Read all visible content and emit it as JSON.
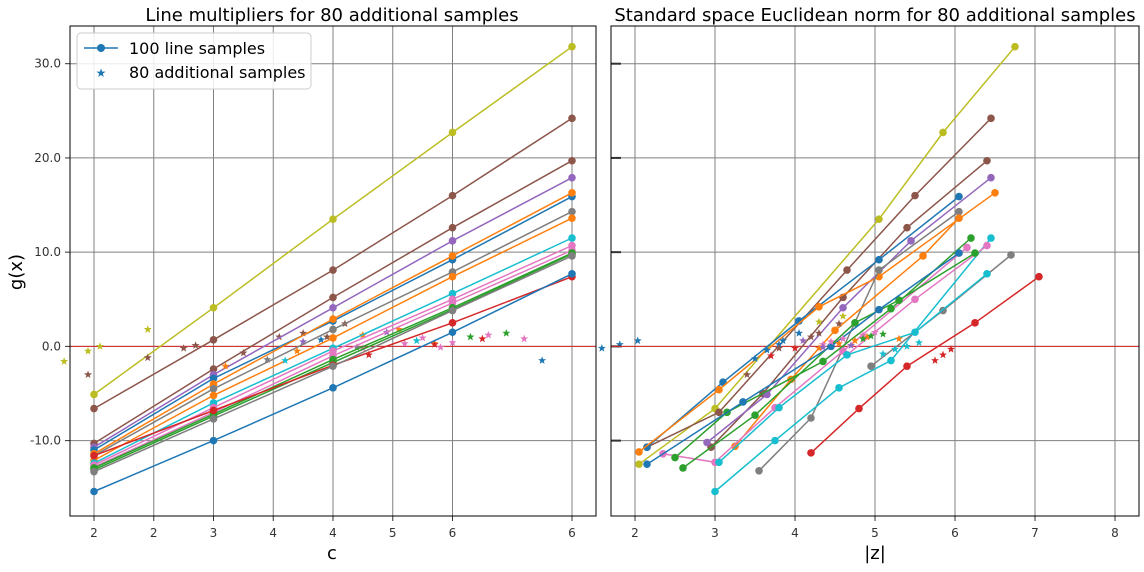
{
  "figure": {
    "shared_ylabel": "g(x)"
  },
  "legend": {
    "line_label": "100 line samples",
    "star_label": "80 additional samples"
  },
  "colors": {
    "threshold": "#d62728",
    "grid": "#808080",
    "legend_marker": "#1f77b4"
  },
  "chart_data": [
    {
      "type": "line",
      "title": "Line multipliers for 80 additional samples",
      "xlabel": "c",
      "ylabel": "g(x)",
      "x_tick_labels": [
        "2",
        "2",
        "3",
        "4",
        "4",
        "5",
        "6",
        "6"
      ],
      "y_ticks": [
        -10,
        0,
        10,
        20,
        30
      ],
      "y_tick_labels": [
        "-10.0",
        "0.0",
        "10.0",
        "20.0",
        "30.0"
      ],
      "ylim": [
        -18,
        34
      ],
      "grid": true,
      "legend_position": "top-left",
      "reference_line_y": 0,
      "x_points": [
        2,
        3,
        4,
        5,
        6
      ],
      "series": [
        {
          "color": "#bcbd22",
          "y": [
            -5.1,
            4.1,
            13.5,
            22.7,
            31.8
          ],
          "stars": [
            [
              1.75,
              -1.6
            ],
            [
              1.95,
              -0.5
            ],
            [
              2.05,
              0.0
            ],
            [
              2.45,
              1.8
            ]
          ]
        },
        {
          "color": "#8c564b",
          "y": [
            -6.6,
            0.7,
            8.1,
            16.0,
            24.2
          ],
          "stars": [
            [
              1.95,
              -3.0
            ],
            [
              2.45,
              -1.2
            ],
            [
              2.75,
              -0.2
            ],
            [
              2.85,
              0.1
            ],
            [
              3.55,
              1.0
            ],
            [
              3.75,
              1.4
            ],
            [
              4.1,
              2.4
            ]
          ]
        },
        {
          "color": "#8c564b",
          "y": [
            -10.3,
            -2.4,
            5.2,
            12.6,
            19.7
          ],
          "stars": [
            [
              3.25,
              -0.7
            ],
            [
              3.95,
              1.0
            ]
          ]
        },
        {
          "color": "#9467bd",
          "y": [
            -10.7,
            -3.0,
            4.1,
            11.2,
            17.9
          ],
          "stars": [
            [
              3.75,
              0.5
            ],
            [
              4.45,
              1.5
            ]
          ]
        },
        {
          "color": "#1f77b4",
          "y": [
            -11.0,
            -3.4,
            2.7,
            9.2,
            15.9
          ],
          "stars": [
            [
              3.9,
              0.7
            ]
          ]
        },
        {
          "color": "#ff7f0e",
          "y": [
            -11.4,
            -4.0,
            2.9,
            9.6,
            16.3
          ],
          "stars": [
            [
              4.25,
              1.2
            ],
            [
              4.55,
              1.8
            ],
            [
              4.85,
              0.3
            ]
          ]
        },
        {
          "color": "#7f7f7f",
          "y": [
            -11.6,
            -4.5,
            1.8,
            7.9,
            14.3
          ],
          "stars": [
            [
              3.45,
              -1.4
            ],
            [
              4.2,
              -0.1
            ]
          ]
        },
        {
          "color": "#ff7f0e",
          "y": [
            -12.1,
            -5.2,
            0.9,
            7.4,
            13.6
          ],
          "stars": [
            [
              3.1,
              -2.1
            ],
            [
              3.7,
              -0.5
            ]
          ]
        },
        {
          "color": "#17becf",
          "y": [
            -12.4,
            -6.0,
            -0.2,
            5.6,
            11.5
          ],
          "stars": [
            [
              3.6,
              -1.5
            ],
            [
              4.7,
              0.6
            ]
          ]
        },
        {
          "color": "#e377c2",
          "y": [
            -12.6,
            -6.5,
            -0.5,
            5.0,
            10.7
          ],
          "stars": [
            [
              4.25,
              -0.2
            ],
            [
              4.6,
              0.3
            ],
            [
              4.9,
              -0.1
            ],
            [
              5.0,
              0.4
            ]
          ]
        },
        {
          "color": "#e377c2",
          "y": [
            -12.8,
            -7.0,
            -1.0,
            4.6,
            10.2
          ],
          "stars": [
            [
              4.75,
              0.9
            ],
            [
              5.3,
              1.2
            ],
            [
              5.6,
              0.8
            ]
          ]
        },
        {
          "color": "#2ca02c",
          "y": [
            -12.9,
            -7.2,
            -1.4,
            4.1,
            9.9
          ],
          "stars": [
            [
              5.15,
              1.0
            ]
          ]
        },
        {
          "color": "#2ca02c",
          "y": [
            -13.1,
            -7.4,
            -1.7,
            3.9,
            9.8
          ],
          "stars": [
            [
              5.45,
              1.4
            ]
          ]
        },
        {
          "color": "#d62728",
          "y": [
            -11.6,
            -6.8,
            -2.0,
            2.5,
            7.4
          ],
          "stars": [
            [
              4.3,
              -0.9
            ],
            [
              4.85,
              0.2
            ],
            [
              5.25,
              0.8
            ]
          ]
        },
        {
          "color": "#1f77b4",
          "y": [
            -15.4,
            -10.0,
            -4.4,
            1.5,
            7.7
          ],
          "stars": [
            [
              5.75,
              -1.5
            ],
            [
              6.25,
              -0.2
            ],
            [
              6.4,
              0.2
            ],
            [
              6.55,
              0.6
            ]
          ]
        },
        {
          "color": "#7f7f7f",
          "y": [
            -13.3,
            -7.7,
            -2.1,
            3.8,
            9.6
          ],
          "stars": []
        }
      ]
    },
    {
      "type": "line",
      "title": "Standard space Euclidean norm for 80 additional samples",
      "xlabel": "|z|",
      "x_ticks": [
        2,
        3,
        4,
        5,
        6,
        7,
        8
      ],
      "x_tick_labels": [
        "2",
        "3",
        "4",
        "5",
        "6",
        "7",
        "8"
      ],
      "xlim": [
        1.7,
        8.3
      ],
      "ylim": [
        -18,
        34
      ],
      "grid": true,
      "reference_line_y": 0,
      "series": [
        {
          "color": "#bcbd22",
          "points": [
            [
              2.05,
              -12.5
            ],
            [
              3.0,
              -6.6
            ],
            [
              5.05,
              13.5
            ],
            [
              5.85,
              22.7
            ],
            [
              6.75,
              31.8
            ]
          ]
        },
        {
          "color": "#8c564b",
          "points": [
            [
              2.15,
              -10.7
            ],
            [
              3.05,
              -7.0
            ],
            [
              4.65,
              8.1
            ],
            [
              5.5,
              16.0
            ],
            [
              6.45,
              24.2
            ]
          ]
        },
        {
          "color": "#8c564b",
          "points": [
            [
              2.95,
              -10.7
            ],
            [
              3.6,
              -5.0
            ],
            [
              4.6,
              5.2
            ],
            [
              5.4,
              12.6
            ],
            [
              6.4,
              19.7
            ]
          ]
        },
        {
          "color": "#9467bd",
          "points": [
            [
              2.9,
              -10.2
            ],
            [
              3.65,
              -5.1
            ],
            [
              4.6,
              4.1
            ],
            [
              5.45,
              11.2
            ],
            [
              6.45,
              17.9
            ]
          ]
        },
        {
          "color": "#1f77b4",
          "points": [
            [
              2.15,
              -10.7
            ],
            [
              3.1,
              -3.8
            ],
            [
              4.05,
              2.7
            ],
            [
              5.05,
              9.2
            ],
            [
              6.05,
              15.9
            ]
          ]
        },
        {
          "color": "#ff7f0e",
          "points": [
            [
              2.05,
              -11.2
            ],
            [
              3.05,
              -4.6
            ],
            [
              4.3,
              4.2
            ],
            [
              5.05,
              7.4
            ],
            [
              6.5,
              16.3
            ]
          ]
        },
        {
          "color": "#7f7f7f",
          "points": [
            [
              3.55,
              -13.2
            ],
            [
              4.2,
              -7.6
            ],
            [
              5.05,
              8.1
            ],
            [
              6.05,
              14.3
            ]
          ]
        },
        {
          "color": "#ff7f0e",
          "points": [
            [
              3.25,
              -10.6
            ],
            [
              3.95,
              -3.5
            ],
            [
              4.5,
              1.7
            ],
            [
              5.6,
              9.6
            ],
            [
              6.05,
              13.6
            ]
          ]
        },
        {
          "color": "#17becf",
          "points": [
            [
              3.0,
              -15.4
            ],
            [
              3.75,
              -10.0
            ],
            [
              4.55,
              -4.4
            ],
            [
              5.2,
              -1.5
            ],
            [
              6.45,
              11.5
            ]
          ]
        },
        {
          "color": "#e377c2",
          "points": [
            [
              2.35,
              -11.4
            ],
            [
              3.0,
              -12.3
            ],
            [
              3.75,
              -6.5
            ],
            [
              4.6,
              -0.5
            ],
            [
              6.15,
              10.5
            ]
          ]
        },
        {
          "color": "#e377c2",
          "points": [
            [
              4.65,
              -0.9
            ],
            [
              5.5,
              5.0
            ],
            [
              6.4,
              10.7
            ]
          ]
        },
        {
          "color": "#2ca02c",
          "points": [
            [
              2.5,
              -11.8
            ],
            [
              3.15,
              -7.0
            ],
            [
              4.35,
              -1.6
            ],
            [
              5.2,
              4.0
            ],
            [
              6.2,
              11.5
            ]
          ]
        },
        {
          "color": "#2ca02c",
          "points": [
            [
              2.6,
              -12.9
            ],
            [
              3.5,
              -7.3
            ],
            [
              4.75,
              2.5
            ],
            [
              5.3,
              4.9
            ],
            [
              6.25,
              9.9
            ]
          ]
        },
        {
          "color": "#d62728",
          "points": [
            [
              4.2,
              -11.3
            ],
            [
              4.8,
              -6.6
            ],
            [
              5.4,
              -2.1
            ],
            [
              6.25,
              2.5
            ],
            [
              7.05,
              7.4
            ]
          ]
        },
        {
          "color": "#1f77b4",
          "points": [
            [
              2.15,
              -12.5
            ],
            [
              3.35,
              -5.9
            ],
            [
              4.45,
              0.0
            ],
            [
              5.05,
              3.9
            ],
            [
              6.05,
              9.9
            ]
          ]
        },
        {
          "color": "#7f7f7f",
          "points": [
            [
              4.95,
              -2.1
            ],
            [
              5.85,
              3.8
            ],
            [
              6.7,
              9.7
            ]
          ]
        },
        {
          "color": "#17becf",
          "points": [
            [
              3.05,
              -12.3
            ],
            [
              3.8,
              -6.5
            ],
            [
              4.65,
              -0.9
            ],
            [
              5.5,
              1.5
            ],
            [
              6.4,
              7.7
            ]
          ]
        }
      ],
      "stars": [
        {
          "color": "#1f77b4",
          "pts": [
            [
              3.5,
              -1.3
            ],
            [
              3.65,
              -0.4
            ],
            [
              3.8,
              0.2
            ],
            [
              3.85,
              0.6
            ],
            [
              4.05,
              1.4
            ]
          ]
        },
        {
          "color": "#8c564b",
          "pts": [
            [
              3.4,
              -3.0
            ],
            [
              3.8,
              -0.2
            ],
            [
              4.2,
              1.0
            ],
            [
              4.3,
              1.4
            ],
            [
              4.55,
              2.4
            ]
          ]
        },
        {
          "color": "#d62728",
          "pts": [
            [
              3.7,
              -1.0
            ],
            [
              4.0,
              -0.2
            ],
            [
              5.75,
              -1.5
            ],
            [
              5.85,
              -0.9
            ],
            [
              5.95,
              -0.3
            ]
          ]
        },
        {
          "color": "#ff7f0e",
          "pts": [
            [
              4.3,
              -0.2
            ],
            [
              4.55,
              0.3
            ],
            [
              4.75,
              0.6
            ],
            [
              4.9,
              1.0
            ],
            [
              5.3,
              0.8
            ]
          ]
        },
        {
          "color": "#e377c2",
          "pts": [
            [
              4.35,
              0.2
            ],
            [
              4.45,
              0.5
            ],
            [
              4.6,
              0.8
            ],
            [
              4.85,
              1.2
            ],
            [
              5.0,
              1.5
            ]
          ]
        },
        {
          "color": "#17becf",
          "pts": [
            [
              5.1,
              -0.8
            ],
            [
              5.25,
              -0.3
            ],
            [
              5.4,
              0.0
            ],
            [
              5.55,
              0.4
            ]
          ]
        },
        {
          "color": "#9467bd",
          "pts": [
            [
              4.1,
              0.6
            ],
            [
              4.35,
              -0.1
            ],
            [
              4.7,
              0.1
            ]
          ]
        },
        {
          "color": "#2ca02c",
          "pts": [
            [
              4.85,
              0.8
            ],
            [
              4.95,
              1.1
            ],
            [
              5.1,
              1.3
            ]
          ]
        },
        {
          "color": "#bcbd22",
          "pts": [
            [
              4.3,
              2.6
            ],
            [
              4.6,
              3.2
            ]
          ]
        }
      ]
    }
  ]
}
